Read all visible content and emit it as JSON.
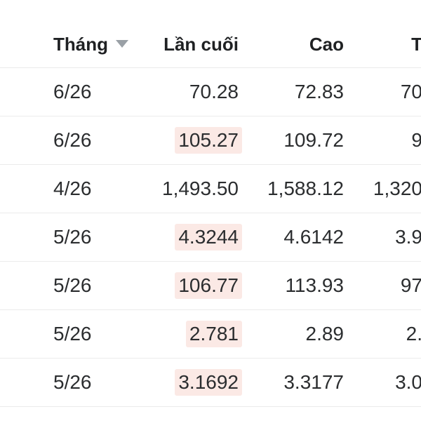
{
  "table": {
    "columns": {
      "month": {
        "label": "Tháng",
        "sortable": true,
        "sort_direction": "desc"
      },
      "last": {
        "label": "Lần cuối"
      },
      "high": {
        "label": "Cao"
      },
      "low": {
        "label": "T",
        "note": "column clipped at right edge of screenshot"
      }
    },
    "rows": [
      {
        "month": "6/26",
        "last": "70.28",
        "last_highlight": false,
        "high": "72.83",
        "low_partial": "70"
      },
      {
        "month": "6/26",
        "last": "105.27",
        "last_highlight": true,
        "high": "109.72",
        "low_partial": "9"
      },
      {
        "month": "4/26",
        "last": "1,493.50",
        "last_highlight": false,
        "high": "1,588.12",
        "low_partial": "1,320"
      },
      {
        "month": "5/26",
        "last": "4.3244",
        "last_highlight": true,
        "high": "4.6142",
        "low_partial": "3.9"
      },
      {
        "month": "5/26",
        "last": "106.77",
        "last_highlight": true,
        "high": "113.93",
        "low_partial": "97"
      },
      {
        "month": "5/26",
        "last": "2.781",
        "last_highlight": true,
        "high": "2.89",
        "low_partial": "2."
      },
      {
        "month": "5/26",
        "last": "3.1692",
        "last_highlight": true,
        "high": "3.3177",
        "low_partial": "3.0"
      }
    ],
    "colors": {
      "highlight_bg": "#fbe9e5",
      "header_text": "#1f2123",
      "cell_text": "#2b2d2f",
      "divider": "#ebebeb",
      "sort_arrow": "#9aa0a6",
      "background": "#ffffff"
    }
  }
}
